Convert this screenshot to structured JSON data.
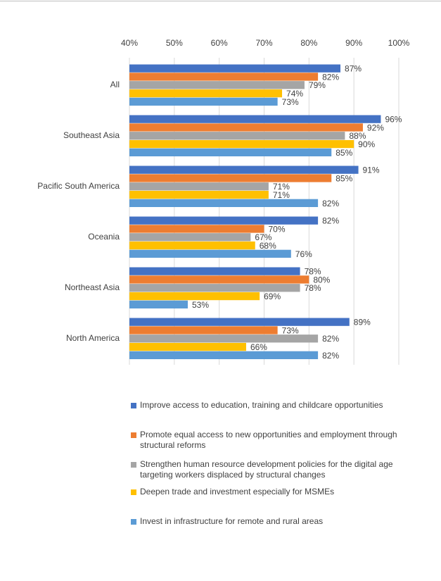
{
  "chart_data": {
    "type": "hbar",
    "categories": [
      "All",
      "Southeast Asia",
      "Pacific South America",
      "Oceania",
      "Northeast Asia",
      "North America"
    ],
    "series": [
      {
        "name": "Improve access to education, training and childcare opportunities",
        "color": "#4472c4",
        "values": [
          87,
          96,
          91,
          82,
          78,
          89
        ],
        "value_labels": [
          "87%",
          "96%",
          "91%",
          "82%",
          "78%",
          "89%"
        ]
      },
      {
        "name": "Promote equal access to new opportunities and employment through structural reforms",
        "color": "#ed7d31",
        "values": [
          82,
          92,
          85,
          70,
          80,
          73
        ],
        "value_labels": [
          "82%",
          "92%",
          "85%",
          "70%",
          "80%",
          "73%"
        ]
      },
      {
        "name": "Strengthen human resource development policies for the digital age targeting workers displaced by structural changes",
        "color": "#a5a5a5",
        "values": [
          79,
          88,
          71,
          67,
          78,
          82
        ],
        "value_labels": [
          "79%",
          "88%",
          "71%",
          "67%",
          "78%",
          "82%"
        ]
      },
      {
        "name": "Deepen trade and investment especially for MSMEs",
        "color": "#ffc000",
        "values": [
          74,
          90,
          71,
          68,
          69,
          66
        ],
        "value_labels": [
          "74%",
          "90%",
          "71%",
          "68%",
          "69%",
          "66%"
        ]
      },
      {
        "name": "Invest in infrastructure for remote and rural areas",
        "color": "#5b9bd5",
        "values": [
          73,
          85,
          82,
          76,
          53,
          82
        ],
        "value_labels": [
          "73%",
          "85%",
          "82%",
          "76%",
          "53%",
          "82%"
        ]
      }
    ],
    "xlim": [
      40,
      100
    ],
    "xticks": [
      {
        "value": 40,
        "label": "40%"
      },
      {
        "value": 50,
        "label": "50%"
      },
      {
        "value": 60,
        "label": "60%"
      },
      {
        "value": 70,
        "label": "70%"
      },
      {
        "value": 80,
        "label": "80%"
      },
      {
        "value": 90,
        "label": "90%"
      },
      {
        "value": 100,
        "label": "100%"
      }
    ],
    "grid": true
  }
}
